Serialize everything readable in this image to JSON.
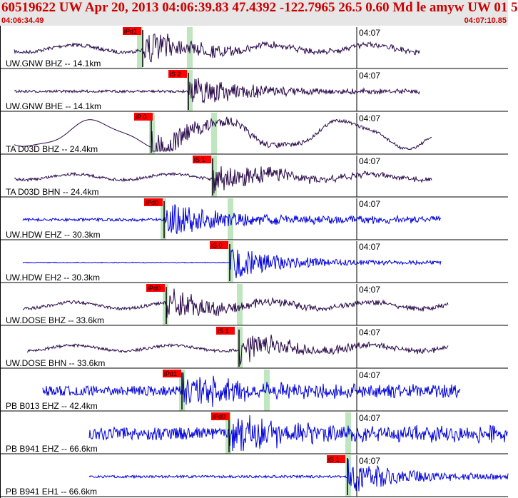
{
  "header": {
    "title": "60519622 UW Apr 20, 2013 04:06:39.83    47.4392 -122.7965 26.5 0.60 Md le amyw UW 01   5",
    "start_time": "04:06:34.49",
    "end_time": "04:07:10.85"
  },
  "time_tick_label": "04:07",
  "colors": {
    "trace_dark": "#2a0a4a",
    "trace_blue": "#0000dd",
    "pick_flag": "#ff0000",
    "pick_band": "#bfe6bf",
    "header_text": "#cc0000"
  },
  "traces": [
    {
      "label": "UW.GNW BHZ -- 14.1km",
      "pick": "iPd1",
      "color": "dark"
    },
    {
      "label": "UW.GNW BHE -- 14.1km",
      "pick": "iS 2",
      "color": "dark"
    },
    {
      "label": "TA D03D BHZ -- 24.4km",
      "pick": "iP 0",
      "color": "dark"
    },
    {
      "label": "TA D03D BHN -- 24.4km",
      "pick": "iS 1",
      "color": "dark"
    },
    {
      "label": "UW.HDW EHZ -- 30.3km",
      "pick": "iPd0",
      "color": "blue"
    },
    {
      "label": "UW.HDW EH2 -- 30.3km",
      "pick": "iS 0",
      "color": "blue"
    },
    {
      "label": "UW.DOSE BHZ -- 33.6km",
      "pick": "iPd0",
      "color": "dark"
    },
    {
      "label": "UW.DOSE BHN -- 33.6km",
      "pick": "iS 1",
      "color": "dark"
    },
    {
      "label": "PB B013 EHZ -- 42.4km",
      "pick": "iPd1",
      "color": "blue"
    },
    {
      "label": "PB B941 EHZ -- 66.6km",
      "pick": "iPd0",
      "color": "blue"
    },
    {
      "label": "PB B941 EH1 -- 66.6km",
      "pick": "iS 1",
      "color": "blue"
    }
  ]
}
